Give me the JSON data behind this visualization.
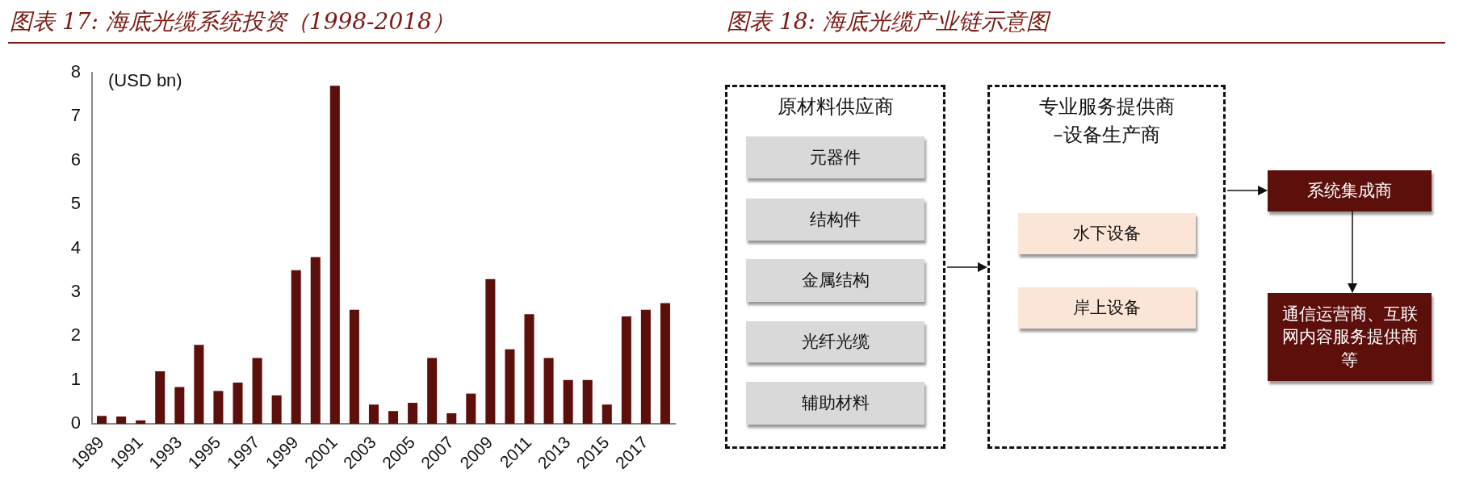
{
  "chart_data": [
    {
      "type": "bar",
      "title": "图表 17: 海底光缆系统投资（1998-2018）",
      "ylabel": "(USD bn)",
      "categories": [
        "1989",
        null,
        "1991",
        null,
        "1993",
        null,
        "1995",
        null,
        "1997",
        null,
        "1999",
        null,
        "2001",
        null,
        "2003",
        null,
        "2005",
        null,
        "2007",
        null,
        "2009",
        null,
        "2011",
        null,
        "2013",
        null,
        "2015",
        null,
        "2017",
        null
      ],
      "values": [
        0.18,
        0.17,
        0.08,
        1.2,
        0.84,
        1.8,
        0.75,
        0.94,
        1.5,
        0.65,
        3.5,
        3.8,
        7.7,
        2.6,
        0.44,
        0.29,
        0.48,
        1.5,
        0.24,
        0.69,
        3.3,
        1.7,
        2.5,
        1.5,
        1.0,
        1.0,
        0.44,
        2.45,
        2.6,
        2.75
      ],
      "color": "#5c0f0b",
      "ylim": [
        0,
        8
      ],
      "yticks": [
        0,
        1,
        2,
        3,
        4,
        5,
        6,
        7,
        8
      ],
      "grid": false,
      "legend": false
    },
    {
      "type": "other",
      "title": "图表 18: 海底光缆产业链示意图",
      "annotations": [
        "原材料供应商",
        "元器件",
        "结构件",
        "金属结构",
        "光纤光缆",
        "辅助材料",
        "专业服务提供商",
        "–设备生产商",
        "水下设备",
        "岸上设备",
        "系统集成商",
        "通信运营商、互联网内容服务提供商等"
      ]
    }
  ]
}
